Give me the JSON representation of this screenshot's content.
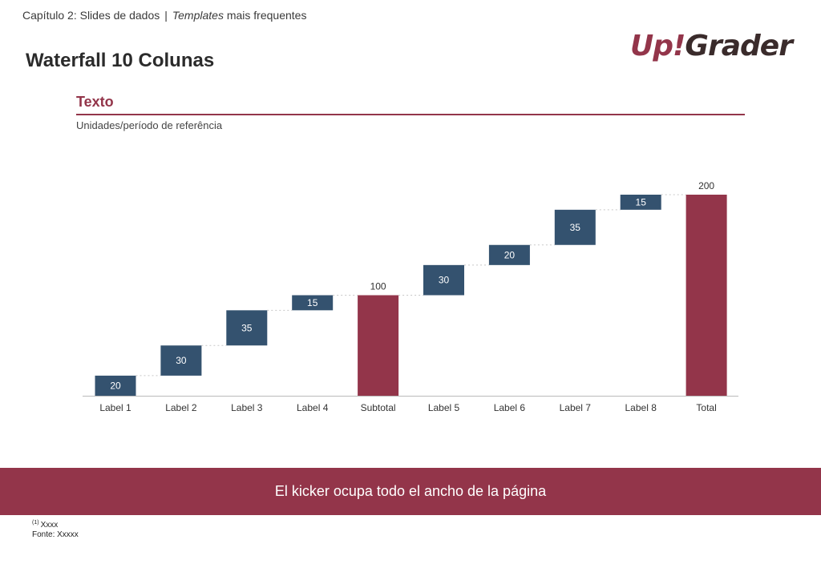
{
  "header": {
    "breadcrumb_chapter": "Capítulo 2: Slides de dados",
    "breadcrumb_separator": "|",
    "breadcrumb_templates": "Templates",
    "breadcrumb_rest": "mais frequentes",
    "page_title": "Waterfall 10 Colunas"
  },
  "logo": {
    "part1": "Up!",
    "part2": "Grader"
  },
  "colors": {
    "accent": "#93354a",
    "increment": "#34526f",
    "connector": "#c8c8c8",
    "axis": "#bbbbbb"
  },
  "chart_data": {
    "type": "bar",
    "subtype": "waterfall",
    "title": "Texto",
    "subtitle": "Unidades/período de referência",
    "categories": [
      "Label 1",
      "Label 2",
      "Label 3",
      "Label 4",
      "Subtotal",
      "Label 5",
      "Label 6",
      "Label 7",
      "Label 8",
      "Total"
    ],
    "values": [
      20,
      30,
      35,
      15,
      100,
      30,
      20,
      35,
      15,
      200
    ],
    "bar_kind": [
      "increment",
      "increment",
      "increment",
      "increment",
      "total",
      "increment",
      "increment",
      "increment",
      "increment",
      "total"
    ],
    "ylim": [
      0,
      200
    ],
    "grid": false,
    "legend": "none"
  },
  "kicker": {
    "text": "El kicker ocupa todo el ancho de la página"
  },
  "footnotes": {
    "note_marker": "(1)",
    "note_text": "Xxxx",
    "source": "Fonte: Xxxxx"
  }
}
